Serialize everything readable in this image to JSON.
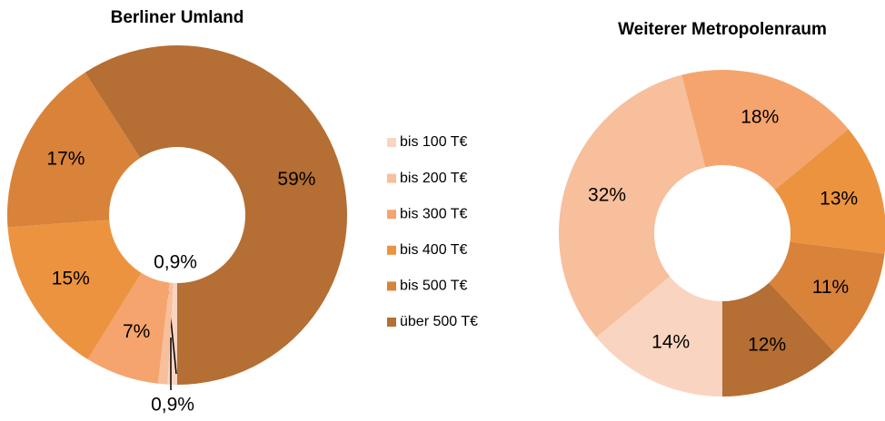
{
  "chart_data": [
    {
      "type": "donut",
      "title": "Berliner Umland",
      "categories": [
        "bis 100 T€",
        "bis 200 T€",
        "bis 300 T€",
        "bis 400 T€",
        "bis 500 T€",
        "über 500 T€"
      ],
      "values": [
        0.9,
        0.9,
        7,
        15,
        17,
        59
      ],
      "value_labels": [
        "0,9%",
        "0,9%",
        "7%",
        "15%",
        "17%",
        "59%"
      ],
      "colors": [
        "#f9d5c1",
        "#f7bf9c",
        "#f5a46e",
        "#ec9340",
        "#d9823a",
        "#b56e33"
      ]
    },
    {
      "type": "donut",
      "title": "Weiterer Metropolenraum",
      "categories": [
        "bis 100 T€",
        "bis 200 T€",
        "bis 300 T€",
        "bis 400 T€",
        "bis 500 T€",
        "über 500 T€"
      ],
      "values": [
        14,
        32,
        18,
        13,
        11,
        12
      ],
      "value_labels": [
        "14%",
        "32%",
        "18%",
        "13%",
        "11%",
        "12%"
      ],
      "colors": [
        "#f9d5c1",
        "#f7bf9c",
        "#f5a46e",
        "#ec9340",
        "#d9823a",
        "#b56e33"
      ]
    }
  ]
}
